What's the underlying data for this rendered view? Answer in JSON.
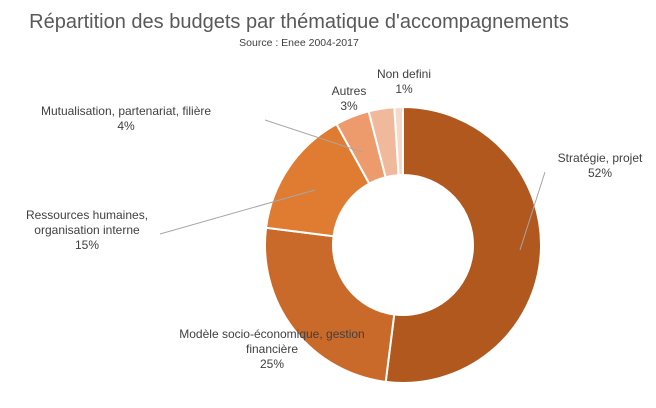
{
  "chart_data": {
    "type": "pie",
    "title": "Répartition des budgets par thématique d'accompagnements",
    "subtitle": "Source : Enee 2004-2017",
    "categories": [
      "Stratégie, projet",
      "Modèle socio-économique, gestion financière",
      "Ressources humaines, organisation interne",
      "Mutualisation, partenariat, filière",
      "Autres",
      "Non defini"
    ],
    "values": [
      52,
      25,
      15,
      4,
      3,
      1
    ],
    "value_labels": [
      "52%",
      "25%",
      "15%",
      "4%",
      "3%",
      "1%"
    ],
    "label_lines": [
      [
        "Stratégie, projet",
        "52%"
      ],
      [
        "Modèle socio-économique, gestion",
        "financière",
        "25%"
      ],
      [
        "Ressources humaines,",
        "organisation interne",
        "15%"
      ],
      [
        "Mutualisation, partenariat, filière",
        "4%"
      ],
      [
        "Autres",
        "3%"
      ],
      [
        "Non defini",
        "1%"
      ]
    ],
    "colors": [
      "#b1581f",
      "#c96a2a",
      "#e07b32",
      "#ed9a6c",
      "#f1b99c",
      "#f7d9cc"
    ],
    "donut": true,
    "legend": "none"
  }
}
